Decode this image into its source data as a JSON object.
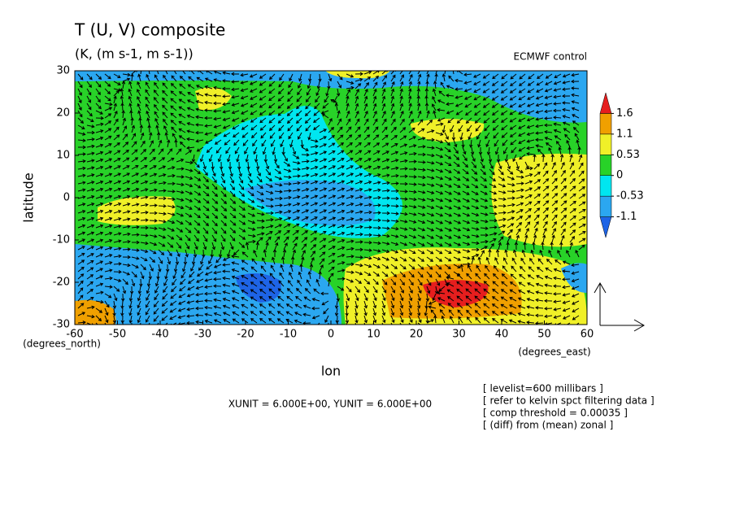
{
  "chart_data": {
    "type": "contour",
    "title": "T (U, V) composite",
    "subtitle": "(K, (m s-1, m s-1))",
    "source": "ECMWF control",
    "xlabel": "lon",
    "ylabel": "latitude",
    "xunit_label": "(degrees_east)",
    "yunit_label": "(degrees_north)",
    "xlim": [
      -60,
      60
    ],
    "ylim": [
      -30,
      30
    ],
    "xticks": [
      -60,
      -50,
      -40,
      -30,
      -20,
      -10,
      0,
      10,
      20,
      30,
      40,
      50,
      60
    ],
    "yticks": [
      -30,
      -20,
      -10,
      0,
      10,
      20,
      30
    ],
    "colorbar": {
      "levels": [
        -1.1,
        -0.53,
        0,
        0.53,
        1.1,
        1.6
      ],
      "colors": [
        "#1e64e6",
        "#2ba7f0",
        "#00e6f0",
        "#28d228",
        "#f0f028",
        "#f0a000",
        "#e61e1e"
      ]
    },
    "vector_units": "XUNIT = 6.000E+00, YUNIT = 6.000E+00",
    "notes": [
      "[ levelist=600 millibars ]",
      "[ refer to kelvin spct filtering data ]",
      "[ comp threshold = 0.00035 ]",
      "[ (diff) from (mean) zonal ]"
    ]
  }
}
